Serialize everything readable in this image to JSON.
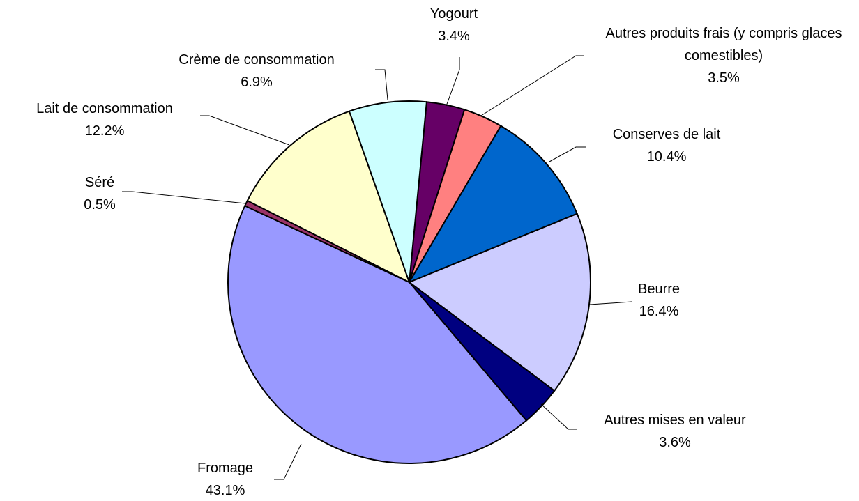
{
  "chart_data": {
    "type": "pie",
    "categories": [
      "Yogourt",
      "Autres produits frais (y compris glaces comestibles)",
      "Conserves de lait",
      "Beurre",
      "Autres mises en valeur",
      "Fromage",
      "Séré",
      "Lait de consommation",
      "Crème de consommation"
    ],
    "values": [
      3.4,
      3.5,
      10.4,
      16.4,
      3.6,
      43.1,
      0.5,
      12.2,
      6.9
    ],
    "value_labels": [
      "3.4%",
      "3.5%",
      "10.4%",
      "16.4%",
      "3.6%",
      "43.1%",
      "0.5%",
      "12.2%",
      "6.9%"
    ],
    "colors": [
      "#660066",
      "#ff8080",
      "#0066cc",
      "#ccccff",
      "#000080",
      "#9999ff",
      "#993366",
      "#ffffcc",
      "#ccffff"
    ]
  }
}
